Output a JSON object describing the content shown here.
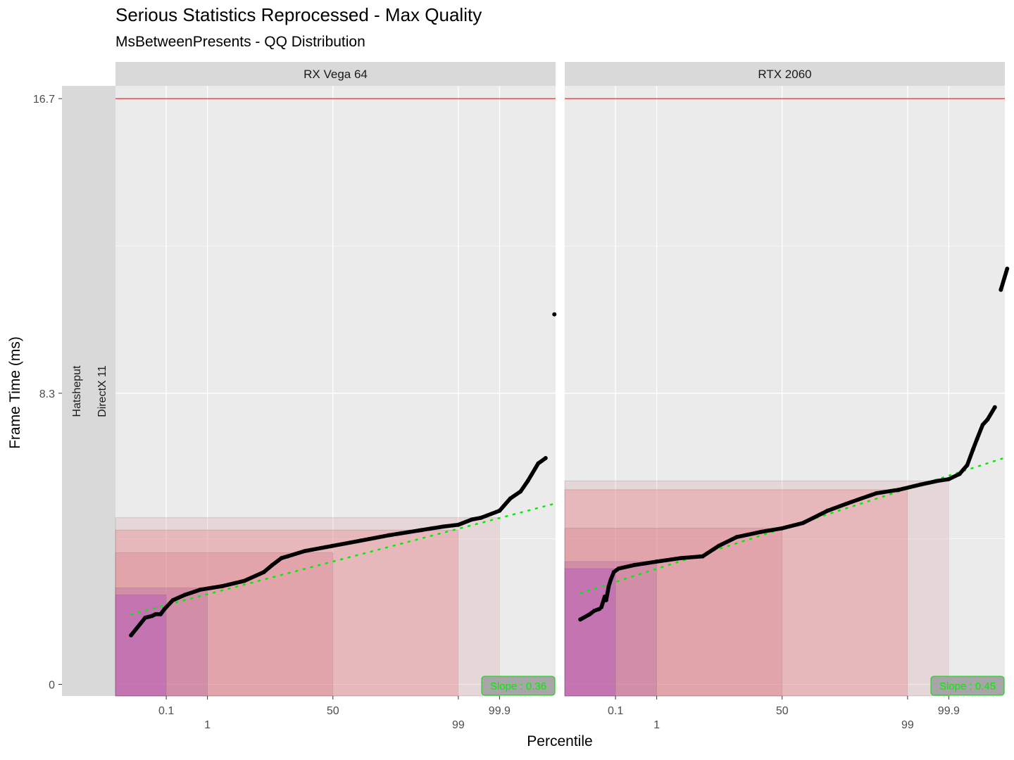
{
  "chart_data": {
    "type": "scatter",
    "title": "Serious Statistics Reprocessed - Max Quality",
    "subtitle": "MsBetweenPresents - QQ Distribution",
    "xlabel": "Percentile",
    "ylabel": "Frame Time (ms)",
    "x_scale": "normal quantile (probit)",
    "x_ticks": [
      "0.1",
      "1",
      "50",
      "99",
      "99.9"
    ],
    "y_ticks": [
      "0",
      "8.3",
      "16.7"
    ],
    "ylim": [
      -0.3,
      16.7
    ],
    "reference_line_y": 16.7,
    "row_strip": [
      "Hatsheput",
      "DirectX 11"
    ],
    "grid": true,
    "panels": [
      {
        "name": "RX Vega 64",
        "slope_label": "Slope : 0.36",
        "fit_line": {
          "x_from": 0.0091,
          "x_to": 99.998,
          "y_from": 2.0,
          "y_to": 5.15
        },
        "bands": [
          {
            "to_percentile": 0.1,
            "y": 2.55,
            "color": "#9932cc"
          },
          {
            "to_percentile": 1,
            "y": 2.75,
            "color": "#b455a0"
          },
          {
            "to_percentile": 50,
            "y": 3.75,
            "color": "#d0747c"
          },
          {
            "to_percentile": 99,
            "y": 4.4,
            "color": "#e8696e"
          },
          {
            "to_percentile": 99.9,
            "y": 4.75,
            "color": "#d9a2a8"
          }
        ],
        "points": [
          [
            0.0091,
            1.4
          ],
          [
            0.025,
            1.9
          ],
          [
            0.04,
            1.95
          ],
          [
            0.05,
            2.0
          ],
          [
            0.07,
            2.0
          ],
          [
            0.09,
            2.15
          ],
          [
            0.15,
            2.4
          ],
          [
            0.3,
            2.55
          ],
          [
            0.7,
            2.7
          ],
          [
            2,
            2.8
          ],
          [
            5,
            2.95
          ],
          [
            10,
            3.2
          ],
          [
            13,
            3.4
          ],
          [
            17,
            3.6
          ],
          [
            20,
            3.65
          ],
          [
            30,
            3.8
          ],
          [
            50,
            3.95
          ],
          [
            70,
            4.1
          ],
          [
            85,
            4.25
          ],
          [
            95,
            4.4
          ],
          [
            98,
            4.5
          ],
          [
            99,
            4.55
          ],
          [
            99.5,
            4.7
          ],
          [
            99.7,
            4.75
          ],
          [
            99.9,
            4.95
          ],
          [
            99.95,
            5.3
          ],
          [
            99.975,
            5.5
          ],
          [
            99.985,
            5.8
          ],
          [
            99.993,
            6.3
          ],
          [
            99.996,
            6.45
          ],
          [
            99.998,
            10.55
          ]
        ]
      },
      {
        "name": "RTX 2060",
        "slope_label": "Slope : 0.45",
        "fit_line": {
          "x_from": 0.0091,
          "x_to": 99.998,
          "y_from": 2.6,
          "y_to": 6.45
        },
        "bands": [
          {
            "to_percentile": 0.1,
            "y": 3.3,
            "color": "#9932cc"
          },
          {
            "to_percentile": 1,
            "y": 3.5,
            "color": "#b455a0"
          },
          {
            "to_percentile": 50,
            "y": 4.45,
            "color": "#d0747c"
          },
          {
            "to_percentile": 99,
            "y": 5.55,
            "color": "#e8696e"
          },
          {
            "to_percentile": 99.9,
            "y": 5.8,
            "color": "#d9a2a8"
          }
        ],
        "points": [
          [
            0.0091,
            1.85
          ],
          [
            0.018,
            2.0
          ],
          [
            0.025,
            2.1
          ],
          [
            0.035,
            2.15
          ],
          [
            0.04,
            2.2
          ],
          [
            0.05,
            2.5
          ],
          [
            0.055,
            2.4
          ],
          [
            0.065,
            2.8
          ],
          [
            0.075,
            3.0
          ],
          [
            0.09,
            3.2
          ],
          [
            0.12,
            3.3
          ],
          [
            0.3,
            3.4
          ],
          [
            1,
            3.5
          ],
          [
            3,
            3.6
          ],
          [
            7,
            3.65
          ],
          [
            12,
            3.95
          ],
          [
            20,
            4.2
          ],
          [
            35,
            4.35
          ],
          [
            50,
            4.45
          ],
          [
            65,
            4.6
          ],
          [
            80,
            4.95
          ],
          [
            90,
            5.2
          ],
          [
            96,
            5.45
          ],
          [
            98.5,
            5.55
          ],
          [
            99.5,
            5.7
          ],
          [
            99.8,
            5.8
          ],
          [
            99.9,
            5.85
          ],
          [
            99.95,
            6.0
          ],
          [
            99.97,
            6.25
          ],
          [
            99.98,
            6.7
          ],
          [
            99.985,
            7.0
          ],
          [
            99.99,
            7.4
          ],
          [
            99.993,
            7.55
          ],
          [
            99.996,
            7.9
          ],
          [
            99.9975,
            11.25
          ],
          [
            99.9985,
            11.85
          ]
        ]
      }
    ]
  }
}
